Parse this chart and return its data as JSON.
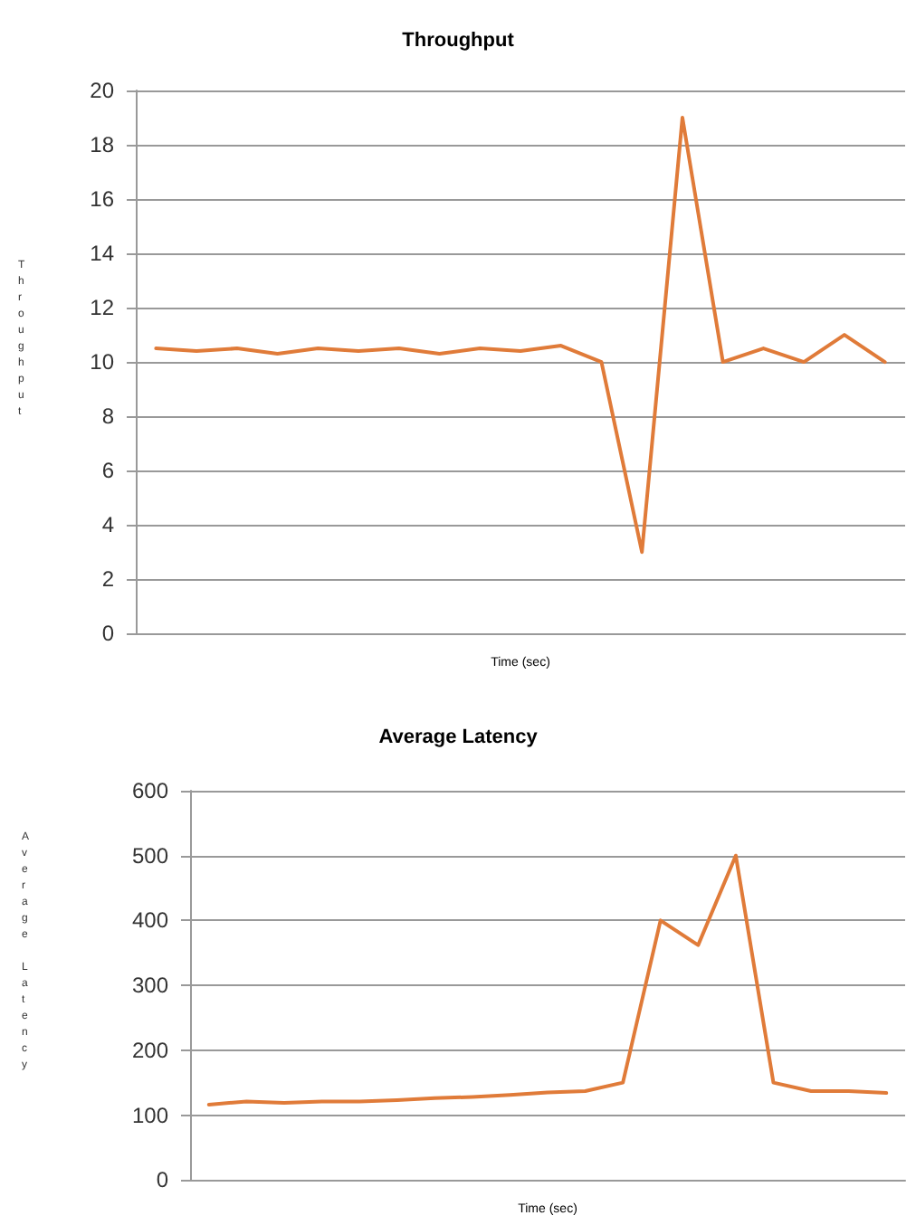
{
  "chart_data": [
    {
      "type": "line",
      "title": "Throughput",
      "xlabel": "Time (sec)",
      "ylabel": "Throughput",
      "categories": [
        null,
        null,
        null,
        null,
        null,
        null,
        null,
        null,
        null,
        null,
        null,
        null,
        null,
        null,
        null,
        null,
        null,
        null,
        null
      ],
      "series": [
        {
          "color": "#e07b39",
          "values": [
            10.5,
            10.4,
            10.5,
            10.3,
            10.5,
            10.4,
            10.5,
            10.3,
            10.5,
            10.4,
            10.6,
            10,
            3,
            19,
            10,
            10.5,
            10,
            11,
            10
          ]
        }
      ],
      "ylim": [
        0,
        20
      ],
      "yticks": [
        0,
        2,
        4,
        6,
        8,
        10,
        12,
        14,
        16,
        18,
        20
      ],
      "grid": "y",
      "marker": "none",
      "line_style": "solid"
    },
    {
      "type": "line",
      "title": "Average Latency",
      "xlabel": "Time (sec)",
      "ylabel": "Average Latency",
      "categories": [
        null,
        null,
        null,
        null,
        null,
        null,
        null,
        null,
        null,
        null,
        null,
        null,
        null,
        null,
        null,
        null,
        null,
        null,
        null
      ],
      "series": [
        {
          "color": "#e07b39",
          "values": [
            116,
            121,
            119,
            121,
            121,
            123,
            126,
            128,
            131,
            135,
            137,
            150,
            400,
            362,
            500,
            150,
            137,
            137,
            134
          ]
        }
      ],
      "ylim": [
        0,
        600
      ],
      "yticks": [
        0,
        100,
        200,
        300,
        400,
        500,
        600
      ],
      "grid": "y",
      "marker": "none",
      "line_style": "solid"
    }
  ]
}
